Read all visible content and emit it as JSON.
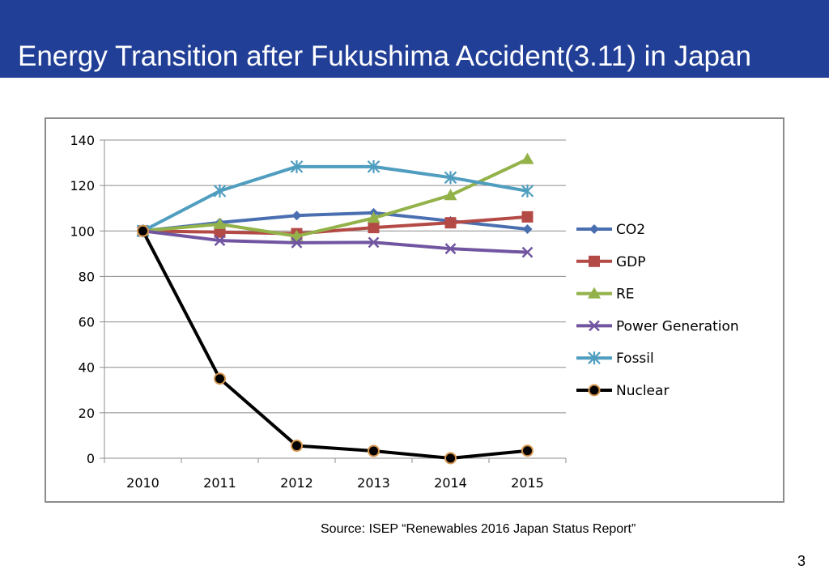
{
  "slide": {
    "title": "Energy Transition after Fukushima Accident(3.11) in Japan",
    "source": "Source: ISEP “Renewables 2016 Japan Status Report”",
    "page_number": "3",
    "header_color": "#213f96"
  },
  "chart_data": {
    "type": "line",
    "title": "",
    "xlabel": "",
    "ylabel": "",
    "categories": [
      "2010",
      "2011",
      "2012",
      "2013",
      "2014",
      "2015"
    ],
    "ylim": [
      0,
      140
    ],
    "yticks": [
      0,
      20,
      40,
      60,
      80,
      100,
      120,
      140
    ],
    "grid": true,
    "legend_position": "right",
    "series": [
      {
        "name": "CO2",
        "color": "#4a6fb0",
        "marker": "diamond",
        "values": [
          100,
          103.7,
          106.8,
          108,
          104.4,
          100.8
        ]
      },
      {
        "name": "GDP",
        "color": "#b44a46",
        "marker": "square",
        "values": [
          100,
          99.5,
          98.8,
          101.5,
          103.6,
          106.2
        ]
      },
      {
        "name": "RE",
        "color": "#93b24a",
        "marker": "triangle",
        "values": [
          100,
          103,
          97.7,
          105.7,
          115.7,
          131.6
        ]
      },
      {
        "name": "Power Generation",
        "color": "#7155a0",
        "marker": "x",
        "values": [
          100,
          95.8,
          94.8,
          95,
          92.2,
          90.6
        ]
      },
      {
        "name": "Fossil",
        "color": "#4f9dbf",
        "marker": "star",
        "values": [
          100,
          117.6,
          128.3,
          128.3,
          123.5,
          117.6
        ]
      },
      {
        "name": "Nuclear",
        "color": "#000000",
        "marker": "circle",
        "marker_edge": "#d5964f",
        "values": [
          100,
          35,
          5.5,
          3.2,
          0,
          3.3
        ]
      }
    ]
  }
}
